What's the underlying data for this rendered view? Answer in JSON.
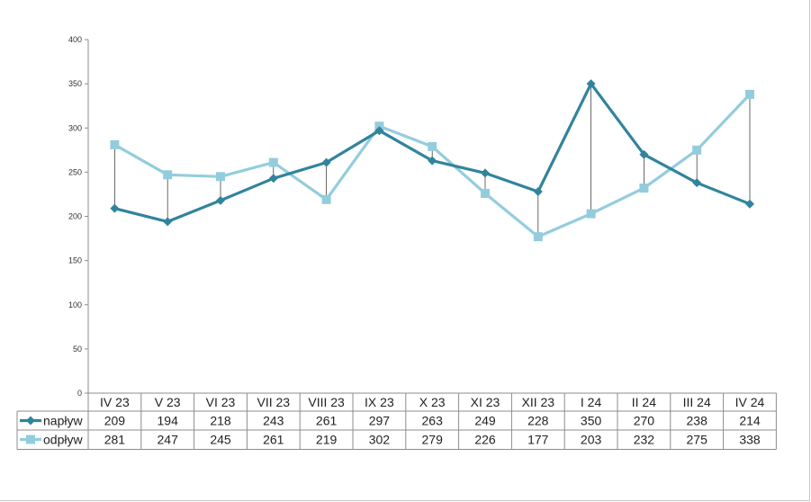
{
  "chart_data": {
    "type": "line",
    "title": "",
    "xlabel": "",
    "ylabel": "",
    "categories": [
      "IV 23",
      "V 23",
      "VI 23",
      "VII 23",
      "VIII 23",
      "IX 23",
      "X 23",
      "XI 23",
      "XII 23",
      "I 24",
      "II 24",
      "III 24",
      "IV 24"
    ],
    "yticks": [
      "0",
      "50",
      "100",
      "150",
      "200",
      "250",
      "300",
      "350",
      "400"
    ],
    "ylim": [
      0,
      400
    ],
    "grid": false,
    "high_low_lines": true,
    "data_table": true,
    "series": [
      {
        "name": "napływ",
        "color": "#31849b",
        "marker": "diamond",
        "values": [
          209,
          194,
          218,
          243,
          261,
          297,
          263,
          249,
          228,
          350,
          270,
          238,
          214
        ]
      },
      {
        "name": "odpływ",
        "color": "#93cddd",
        "marker": "square",
        "values": [
          281,
          247,
          245,
          261,
          219,
          302,
          279,
          226,
          177,
          203,
          232,
          275,
          338
        ]
      }
    ]
  }
}
